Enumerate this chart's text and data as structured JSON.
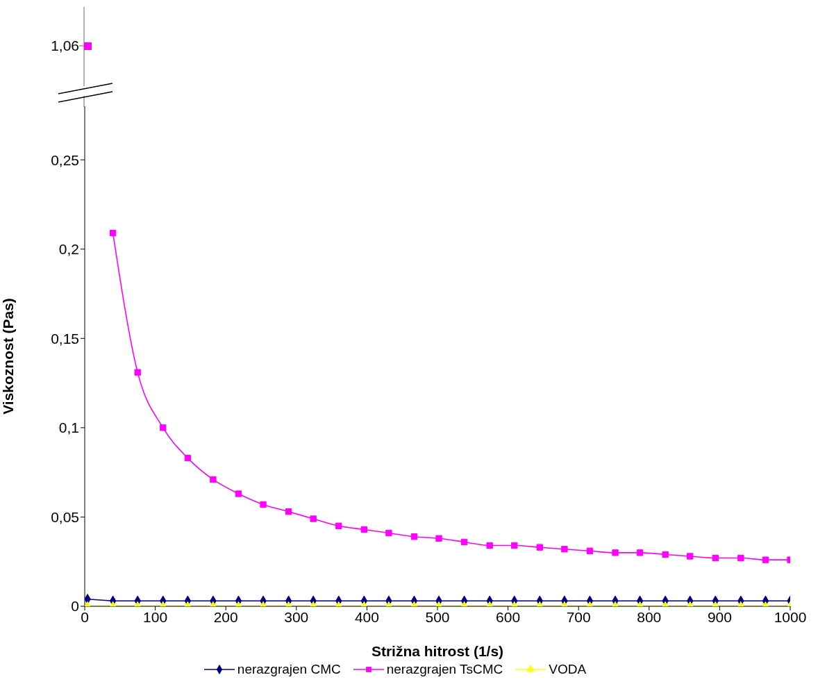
{
  "chart_data": {
    "type": "line",
    "ylabel": "Viskoznost (Pas)",
    "xlabel": "Strižna hitrost (1/s)",
    "annotations": [
      "1,06"
    ],
    "x": [
      4,
      40,
      75,
      111,
      146,
      182,
      218,
      253,
      289,
      324,
      360,
      396,
      431,
      467,
      502,
      538,
      574,
      609,
      645,
      680,
      716,
      752,
      787,
      823,
      858,
      894,
      930,
      965,
      1000
    ],
    "xlim": [
      0,
      1000
    ],
    "xticks": [
      0,
      100,
      200,
      300,
      400,
      500,
      600,
      700,
      800,
      900,
      1000
    ],
    "ylim": [
      0,
      0.28
    ],
    "yticks": [
      0,
      {
        "value": 0.05,
        "label": "0,05"
      },
      {
        "value": 0.1,
        "label": "0,1"
      },
      {
        "value": 0.15,
        "label": "0,15"
      },
      {
        "value": 0.2,
        "label": "0,2"
      },
      {
        "value": 0.25,
        "label": "0,25"
      }
    ],
    "legend": "bottom",
    "line_style": "solid",
    "series": [
      {
        "name": "nerazgrajen CMC",
        "color": "#000080",
        "marker": "diamond",
        "values": [
          0.004,
          0.003,
          0.003,
          0.003,
          0.003,
          0.003,
          0.003,
          0.003,
          0.003,
          0.003,
          0.003,
          0.003,
          0.003,
          0.003,
          0.003,
          0.003,
          0.003,
          0.003,
          0.003,
          0.003,
          0.003,
          0.003,
          0.003,
          0.003,
          0.003,
          0.003,
          0.003,
          0.003,
          0.003
        ]
      },
      {
        "name": "nerazgrajen TsCMC",
        "color": "#ff00ff",
        "marker": "square",
        "values": [
          null,
          0.209,
          0.131,
          0.1,
          0.083,
          0.071,
          0.063,
          0.057,
          0.053,
          0.049,
          0.045,
          0.043,
          0.041,
          0.039,
          0.038,
          0.036,
          0.034,
          0.034,
          0.033,
          0.032,
          0.031,
          0.03,
          0.03,
          0.029,
          0.028,
          0.027,
          0.027,
          0.026,
          0.026
        ]
      },
      {
        "name": "VODA",
        "color": "#ffff00",
        "marker": "triangle",
        "values": [
          0,
          0,
          0,
          0,
          0,
          0,
          0,
          0,
          0,
          0,
          0,
          0,
          0,
          0,
          0,
          0,
          0,
          0,
          0,
          0,
          0,
          0,
          0,
          0,
          0,
          0,
          0,
          0,
          0
        ]
      }
    ]
  }
}
